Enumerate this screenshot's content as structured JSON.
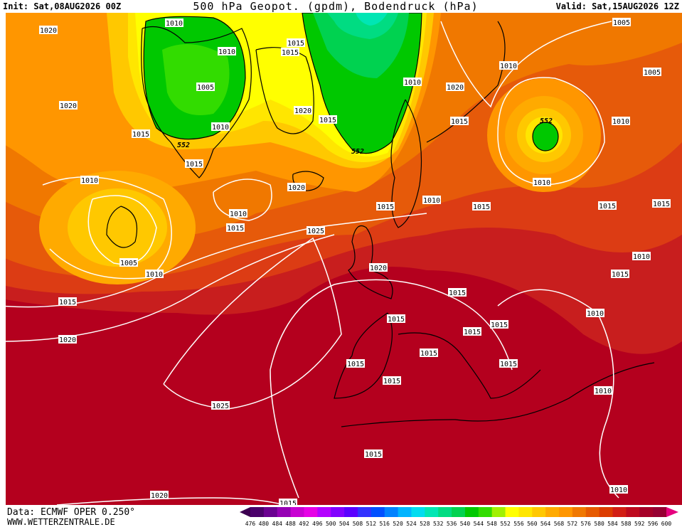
{
  "header": {
    "init": "Init: Sat,08AUG2026 00Z",
    "title": "500 hPa Geopot. (gpdm), Bodendruck (hPa)",
    "valid": "Valid: Sat,15AUG2026 12Z"
  },
  "footer": {
    "source": "Data: ECMWF OPER 0.250°",
    "site": "WWW.WETTERZENTRALE.DE"
  },
  "map_labels": [
    "1020",
    "1010",
    "1010",
    "1015",
    "1015",
    "1005",
    "1020",
    "1015",
    "1010",
    "552",
    "1015",
    "1020",
    "1015",
    "1010",
    "1020",
    "552",
    "1010",
    "1005",
    "1005",
    "1015",
    "552",
    "1010",
    "1010",
    "1020",
    "1010",
    "1015",
    "1015",
    "1010",
    "1015",
    "1010",
    "1015",
    "1015",
    "1025",
    "1005",
    "1010",
    "1020",
    "1015",
    "1015",
    "1015",
    "1010",
    "1015",
    "1010",
    "1015",
    "1015",
    "1020",
    "1015",
    "1015",
    "1015",
    "1015",
    "1010",
    "1025",
    "1015",
    "1010",
    "1020",
    "1015"
  ],
  "colorbar": {
    "levels": [
      "476",
      "480",
      "484",
      "488",
      "492",
      "496",
      "500",
      "504",
      "508",
      "512",
      "516",
      "520",
      "524",
      "528",
      "532",
      "536",
      "540",
      "544",
      "548",
      "552",
      "556",
      "560",
      "564",
      "568",
      "572",
      "576",
      "580",
      "584",
      "588",
      "592",
      "596",
      "600"
    ],
    "colors": [
      "#4a006a",
      "#6a0090",
      "#9600b4",
      "#c800d2",
      "#e600e6",
      "#b400ff",
      "#8200ff",
      "#5a00ff",
      "#3232ff",
      "#0050ff",
      "#0082ff",
      "#00b4ff",
      "#00dcf0",
      "#00e6b4",
      "#00dc82",
      "#00d250",
      "#00c800",
      "#32dc00",
      "#a0f000",
      "#ffff00",
      "#ffe600",
      "#ffc800",
      "#ffaa00",
      "#ff9600",
      "#f07800",
      "#e65a00",
      "#dc3c00",
      "#d21e14",
      "#be0a1e",
      "#a50028",
      "#960032"
    ],
    "low_color": "#3c0050",
    "high_color": "#e6007e"
  }
}
